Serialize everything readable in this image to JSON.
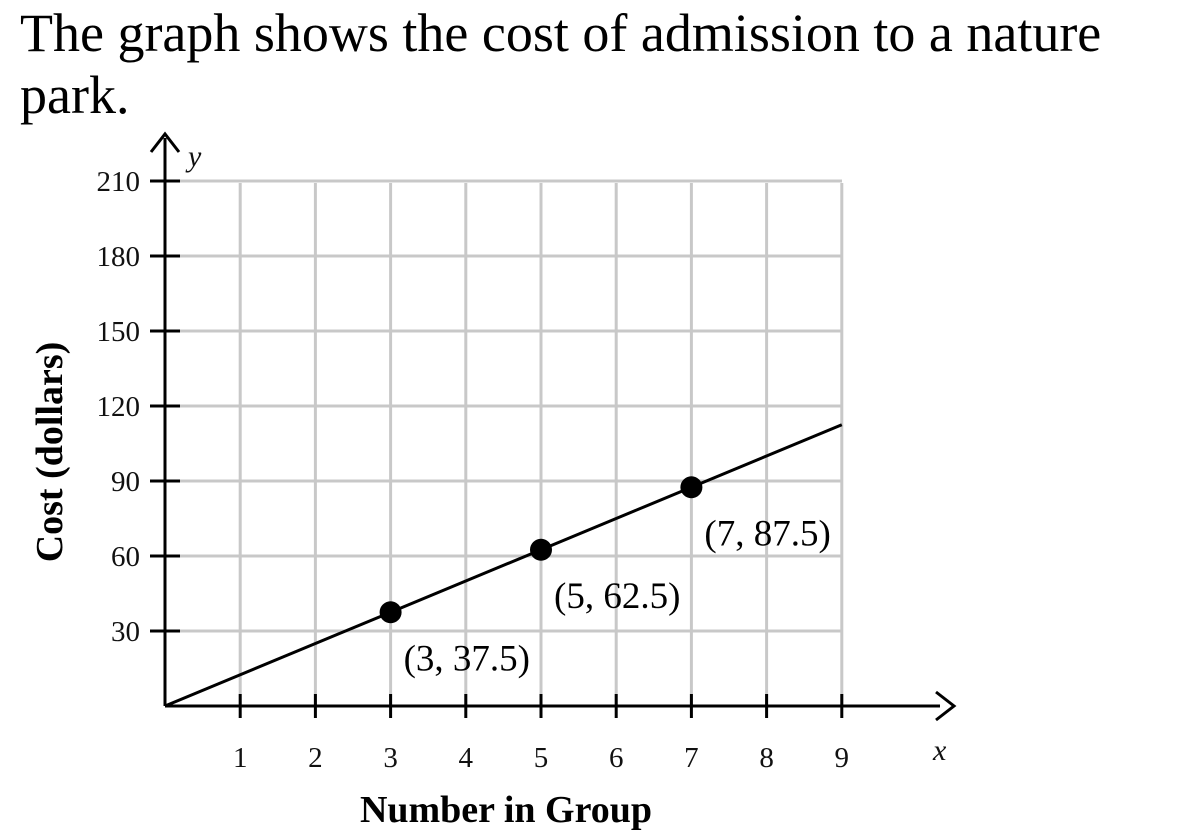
{
  "question": {
    "text": "The graph shows the cost of admission to a nature park."
  },
  "chart_data": {
    "type": "line",
    "xlabel": "Number in Group",
    "ylabel": "Cost (dollars)",
    "x_axis_letter": "x",
    "y_axis_letter": "y",
    "x_ticks": [
      1,
      2,
      3,
      4,
      5,
      6,
      7,
      8,
      9
    ],
    "y_ticks": [
      30,
      60,
      90,
      120,
      150,
      180,
      210
    ],
    "xlim": [
      0,
      9
    ],
    "ylim": [
      0,
      210
    ],
    "grid": true,
    "line": {
      "x": [
        0,
        9
      ],
      "y": [
        0,
        112.5
      ]
    },
    "points": [
      {
        "x": 3,
        "y": 37.5,
        "label": "(3, 37.5)"
      },
      {
        "x": 5,
        "y": 62.5,
        "label": "(5, 62.5)"
      },
      {
        "x": 7,
        "y": 87.5,
        "label": "(7, 87.5)"
      }
    ]
  }
}
